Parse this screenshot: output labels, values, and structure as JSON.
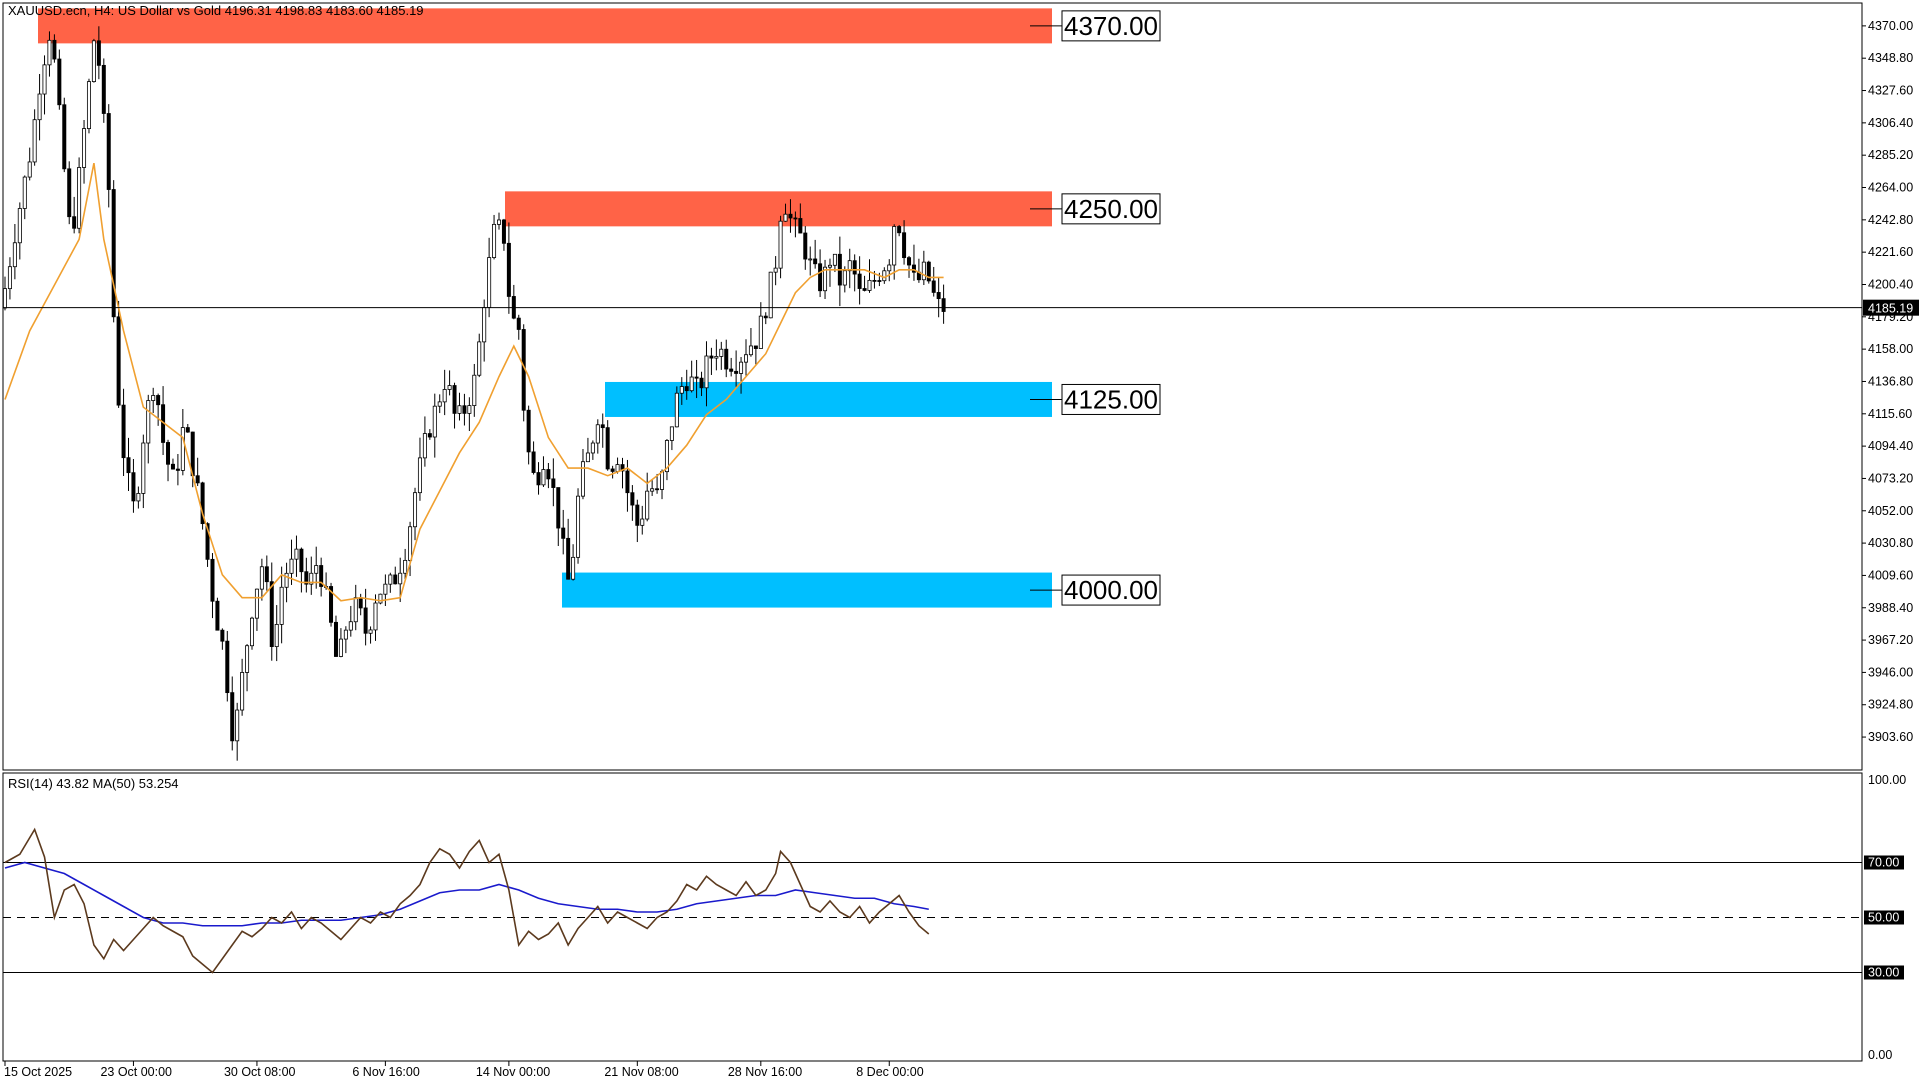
{
  "header": {
    "symbol_line": "XAUUSD.ecn, H4:  US Dollar vs Gold  4196.31 4198.83 4183.60 4185.19",
    "rsi_line": "RSI(14) 43.82 MA(50) 53.254"
  },
  "chart_data": [
    {
      "type": "candlestick",
      "title": "XAUUSD.ecn, H4:  US Dollar vs Gold  4196.31 4198.83 4183.60 4185.19",
      "ylim": [
        3882,
        4385
      ],
      "y_ticks": [
        "4370.00",
        "4348.80",
        "4327.60",
        "4306.40",
        "4285.20",
        "4264.00",
        "4242.80",
        "4221.60",
        "4200.40",
        "4179.20",
        "4158.00",
        "4136.80",
        "4115.60",
        "4094.40",
        "4073.20",
        "4052.00",
        "4030.80",
        "4009.60",
        "3988.40",
        "3967.20",
        "3946.00",
        "3924.80",
        "3903.60"
      ],
      "x_ticks": [
        "15 Oct 2025",
        "23 Oct 00:00",
        "30 Oct 08:00",
        "6 Nov 16:00",
        "14 Nov 00:00",
        "21 Nov 08:00",
        "28 Nov 16:00",
        "8 Dec 00:00"
      ],
      "current_price": "4185.19",
      "grid": false,
      "price_path": [
        [
          0,
          4185
        ],
        [
          3,
          4240
        ],
        [
          6,
          4290
        ],
        [
          8,
          4340
        ],
        [
          10,
          4370
        ],
        [
          12,
          4300
        ],
        [
          14,
          4230
        ],
        [
          15,
          4250
        ],
        [
          17,
          4310
        ],
        [
          19,
          4370
        ],
        [
          20,
          4335
        ],
        [
          22,
          4250
        ],
        [
          23,
          4150
        ],
        [
          25,
          4080
        ],
        [
          27,
          4050
        ],
        [
          29,
          4110
        ],
        [
          31,
          4140
        ],
        [
          33,
          4090
        ],
        [
          35,
          4070
        ],
        [
          37,
          4110
        ],
        [
          40,
          4060
        ],
        [
          43,
          3990
        ],
        [
          45,
          3960
        ],
        [
          47,
          3900
        ],
        [
          49,
          3950
        ],
        [
          51,
          3995
        ],
        [
          53,
          4020
        ],
        [
          55,
          3960
        ],
        [
          57,
          4010
        ],
        [
          60,
          4020
        ],
        [
          62,
          4000
        ],
        [
          64,
          4020
        ],
        [
          66,
          3990
        ],
        [
          68,
          3950
        ],
        [
          70,
          3980
        ],
        [
          72,
          3990
        ],
        [
          74,
          3970
        ],
        [
          76,
          4000
        ],
        [
          78,
          4000
        ],
        [
          80,
          4010
        ],
        [
          82,
          4030
        ],
        [
          84,
          4070
        ],
        [
          86,
          4100
        ],
        [
          88,
          4120
        ],
        [
          90,
          4140
        ],
        [
          92,
          4110
        ],
        [
          94,
          4120
        ],
        [
          96,
          4140
        ],
        [
          98,
          4200
        ],
        [
          100,
          4240
        ],
        [
          102,
          4230
        ],
        [
          103,
          4180
        ],
        [
          105,
          4170
        ],
        [
          106,
          4100
        ],
        [
          108,
          4070
        ],
        [
          110,
          4090
        ],
        [
          112,
          4060
        ],
        [
          114,
          4020
        ],
        [
          115,
          4000
        ],
        [
          117,
          4070
        ],
        [
          119,
          4090
        ],
        [
          121,
          4120
        ],
        [
          123,
          4080
        ],
        [
          125,
          4090
        ],
        [
          127,
          4060
        ],
        [
          129,
          4040
        ],
        [
          131,
          4070
        ],
        [
          133,
          4060
        ],
        [
          135,
          4100
        ],
        [
          137,
          4130
        ],
        [
          139,
          4140
        ],
        [
          141,
          4130
        ],
        [
          143,
          4150
        ],
        [
          145,
          4160
        ],
        [
          147,
          4150
        ],
        [
          149,
          4150
        ],
        [
          151,
          4160
        ],
        [
          153,
          4165
        ],
        [
          155,
          4190
        ],
        [
          157,
          4220
        ],
        [
          158,
          4260
        ],
        [
          160,
          4240
        ],
        [
          162,
          4230
        ],
        [
          164,
          4210
        ],
        [
          166,
          4200
        ],
        [
          168,
          4220
        ],
        [
          170,
          4200
        ],
        [
          172,
          4215
        ],
        [
          174,
          4190
        ],
        [
          176,
          4200
        ],
        [
          178,
          4210
        ],
        [
          180,
          4220
        ],
        [
          181,
          4250
        ],
        [
          183,
          4220
        ],
        [
          185,
          4200
        ],
        [
          187,
          4210
        ],
        [
          189,
          4190
        ],
        [
          190,
          4185
        ]
      ],
      "ma_path": [
        [
          0,
          4125
        ],
        [
          5,
          4170
        ],
        [
          10,
          4200
        ],
        [
          15,
          4230
        ],
        [
          18,
          4280
        ],
        [
          20,
          4230
        ],
        [
          24,
          4170
        ],
        [
          28,
          4120
        ],
        [
          32,
          4110
        ],
        [
          36,
          4100
        ],
        [
          40,
          4050
        ],
        [
          44,
          4010
        ],
        [
          48,
          3995
        ],
        [
          52,
          3995
        ],
        [
          56,
          4010
        ],
        [
          60,
          4005
        ],
        [
          64,
          4005
        ],
        [
          68,
          3993
        ],
        [
          72,
          3995
        ],
        [
          76,
          3993
        ],
        [
          80,
          3995
        ],
        [
          84,
          4040
        ],
        [
          88,
          4065
        ],
        [
          92,
          4090
        ],
        [
          96,
          4110
        ],
        [
          100,
          4140
        ],
        [
          103,
          4160
        ],
        [
          106,
          4140
        ],
        [
          110,
          4100
        ],
        [
          114,
          4080
        ],
        [
          118,
          4080
        ],
        [
          122,
          4075
        ],
        [
          126,
          4080
        ],
        [
          130,
          4070
        ],
        [
          134,
          4080
        ],
        [
          138,
          4095
        ],
        [
          142,
          4115
        ],
        [
          146,
          4125
        ],
        [
          150,
          4140
        ],
        [
          154,
          4155
        ],
        [
          157,
          4175
        ],
        [
          160,
          4195
        ],
        [
          163,
          4205
        ],
        [
          166,
          4210
        ],
        [
          170,
          4210
        ],
        [
          174,
          4210
        ],
        [
          178,
          4205
        ],
        [
          181,
          4210
        ],
        [
          184,
          4210
        ],
        [
          187,
          4205
        ],
        [
          190,
          4205
        ]
      ],
      "levels": [
        {
          "label": "4370.00",
          "value": 4370,
          "color": "#ff6347"
        },
        {
          "label": "4250.00",
          "value": 4250,
          "color": "#ff6347"
        },
        {
          "label": "4125.00",
          "value": 4125,
          "color": "#00bfff"
        },
        {
          "label": "4000.00",
          "value": 4000,
          "color": "#00bfff"
        }
      ],
      "colors": {
        "candle": "#000000",
        "ma": "#f0a030",
        "price_line": "#000000"
      }
    },
    {
      "type": "line",
      "title": "RSI(14) 43.82 MA(50) 53.254",
      "ylim": [
        0,
        100
      ],
      "y_ticks": [
        "100.00",
        "70.00",
        "50.00",
        "30.00",
        "0.00"
      ],
      "hlines": [
        70,
        50,
        30
      ],
      "rsi_path": [
        [
          0,
          70
        ],
        [
          3,
          73
        ],
        [
          6,
          82
        ],
        [
          8,
          72
        ],
        [
          10,
          50
        ],
        [
          12,
          60
        ],
        [
          14,
          62
        ],
        [
          16,
          55
        ],
        [
          18,
          40
        ],
        [
          20,
          35
        ],
        [
          22,
          42
        ],
        [
          24,
          38
        ],
        [
          26,
          42
        ],
        [
          28,
          46
        ],
        [
          30,
          50
        ],
        [
          32,
          47
        ],
        [
          34,
          45
        ],
        [
          36,
          43
        ],
        [
          38,
          36
        ],
        [
          40,
          33
        ],
        [
          42,
          30
        ],
        [
          44,
          35
        ],
        [
          46,
          40
        ],
        [
          48,
          45
        ],
        [
          50,
          43
        ],
        [
          52,
          46
        ],
        [
          54,
          50
        ],
        [
          56,
          48
        ],
        [
          58,
          52
        ],
        [
          60,
          46
        ],
        [
          62,
          50
        ],
        [
          64,
          48
        ],
        [
          66,
          45
        ],
        [
          68,
          42
        ],
        [
          70,
          46
        ],
        [
          72,
          50
        ],
        [
          74,
          48
        ],
        [
          76,
          52
        ],
        [
          78,
          50
        ],
        [
          80,
          55
        ],
        [
          82,
          58
        ],
        [
          84,
          62
        ],
        [
          86,
          70
        ],
        [
          88,
          75
        ],
        [
          90,
          73
        ],
        [
          92,
          68
        ],
        [
          94,
          74
        ],
        [
          96,
          78
        ],
        [
          98,
          70
        ],
        [
          100,
          73
        ],
        [
          102,
          60
        ],
        [
          104,
          40
        ],
        [
          106,
          45
        ],
        [
          108,
          42
        ],
        [
          110,
          44
        ],
        [
          112,
          48
        ],
        [
          114,
          40
        ],
        [
          116,
          46
        ],
        [
          118,
          50
        ],
        [
          120,
          54
        ],
        [
          122,
          48
        ],
        [
          124,
          52
        ],
        [
          126,
          50
        ],
        [
          128,
          48
        ],
        [
          130,
          46
        ],
        [
          132,
          50
        ],
        [
          134,
          52
        ],
        [
          136,
          56
        ],
        [
          138,
          62
        ],
        [
          140,
          60
        ],
        [
          142,
          65
        ],
        [
          144,
          62
        ],
        [
          146,
          60
        ],
        [
          148,
          58
        ],
        [
          150,
          63
        ],
        [
          152,
          58
        ],
        [
          154,
          60
        ],
        [
          156,
          66
        ],
        [
          157,
          74
        ],
        [
          159,
          70
        ],
        [
          161,
          62
        ],
        [
          163,
          54
        ],
        [
          165,
          52
        ],
        [
          167,
          56
        ],
        [
          169,
          52
        ],
        [
          171,
          50
        ],
        [
          173,
          54
        ],
        [
          175,
          48
        ],
        [
          177,
          52
        ],
        [
          179,
          55
        ],
        [
          181,
          58
        ],
        [
          183,
          52
        ],
        [
          185,
          47
        ],
        [
          187,
          44
        ]
      ],
      "ma_path": [
        [
          0,
          68
        ],
        [
          4,
          70
        ],
        [
          8,
          68
        ],
        [
          12,
          66
        ],
        [
          16,
          62
        ],
        [
          20,
          58
        ],
        [
          24,
          54
        ],
        [
          28,
          50
        ],
        [
          32,
          48
        ],
        [
          36,
          48
        ],
        [
          40,
          47
        ],
        [
          44,
          47
        ],
        [
          48,
          47
        ],
        [
          52,
          48
        ],
        [
          56,
          48
        ],
        [
          60,
          49
        ],
        [
          64,
          49
        ],
        [
          68,
          49
        ],
        [
          72,
          50
        ],
        [
          76,
          51
        ],
        [
          80,
          53
        ],
        [
          84,
          56
        ],
        [
          88,
          59
        ],
        [
          92,
          60
        ],
        [
          96,
          60
        ],
        [
          100,
          62
        ],
        [
          104,
          60
        ],
        [
          108,
          57
        ],
        [
          112,
          55
        ],
        [
          116,
          54
        ],
        [
          120,
          53
        ],
        [
          124,
          53
        ],
        [
          128,
          52
        ],
        [
          132,
          52
        ],
        [
          136,
          53
        ],
        [
          140,
          55
        ],
        [
          144,
          56
        ],
        [
          148,
          57
        ],
        [
          152,
          58
        ],
        [
          156,
          58
        ],
        [
          160,
          60
        ],
        [
          164,
          59
        ],
        [
          168,
          58
        ],
        [
          172,
          57
        ],
        [
          176,
          57
        ],
        [
          180,
          55
        ],
        [
          184,
          54
        ],
        [
          187,
          53
        ]
      ],
      "colors": {
        "rsi": "#5c3a1e",
        "ma": "#1a1acc"
      }
    }
  ]
}
